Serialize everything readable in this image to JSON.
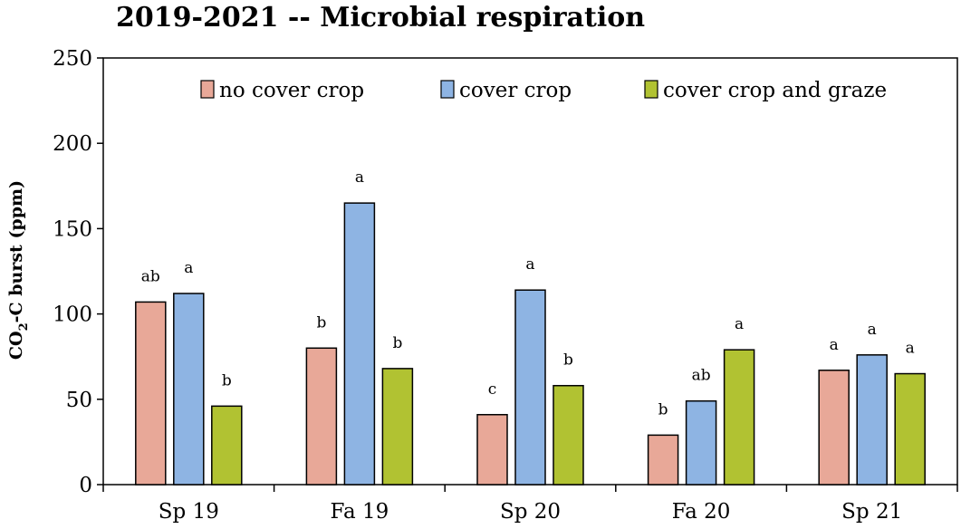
{
  "chart_data": {
    "type": "bar",
    "title": "2019-2021 -- Microbial respiration",
    "ylabel": "CO2-C burst (ppm)",
    "ylabel_main": "CO",
    "ylabel_sub": "2",
    "ylabel_rest": "-C burst (ppm)",
    "xlabel": "",
    "ylim": [
      0,
      250
    ],
    "yticks": [
      0,
      50,
      100,
      150,
      200,
      250
    ],
    "grid": false,
    "legend_position": "top",
    "categories": [
      "Sp 19",
      "Fa 19",
      "Sp 20",
      "Fa 20",
      "Sp 21"
    ],
    "series": [
      {
        "name": "no cover crop",
        "color": "#e8a898",
        "values": [
          107,
          80,
          41,
          29,
          67
        ],
        "labels": [
          "ab",
          "b",
          "c",
          "b",
          "a"
        ]
      },
      {
        "name": "cover crop",
        "color": "#8eb4e3",
        "values": [
          112,
          165,
          114,
          49,
          76
        ],
        "labels": [
          "a",
          "a",
          "a",
          "ab",
          "a"
        ]
      },
      {
        "name": "cover crop and graze",
        "color": "#b1c232",
        "values": [
          46,
          68,
          58,
          79,
          65
        ],
        "labels": [
          "b",
          "b",
          "b",
          "a",
          "a"
        ]
      }
    ]
  }
}
